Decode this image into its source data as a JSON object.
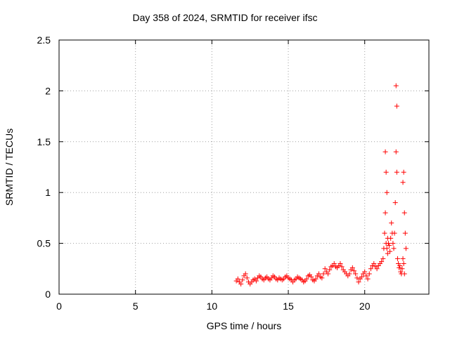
{
  "chart_data": {
    "type": "scatter",
    "title": "Day 358 of 2024, SRMTID for receiver ifsc",
    "xlabel": "GPS time / hours",
    "ylabel": "SRMTID / TECUs",
    "xlim": [
      0,
      24.2
    ],
    "ylim": [
      0,
      2.5
    ],
    "xticks": [
      "0",
      "5",
      "10",
      "15",
      "20"
    ],
    "yticks": [
      "0",
      "0.5",
      "1",
      "1.5",
      "2",
      "2.5"
    ],
    "grid": true,
    "marker": "plus",
    "color": "#ff0000",
    "series": [
      {
        "x": [
          11.6,
          11.7,
          11.8,
          11.9,
          12.0,
          12.1,
          12.2,
          12.3,
          12.4,
          12.5,
          12.6,
          12.7,
          12.8,
          12.9,
          13.0,
          13.1,
          13.2,
          13.3,
          13.4,
          13.5,
          13.6,
          13.7,
          13.8,
          13.9,
          14.0,
          14.1,
          14.2,
          14.3,
          14.4,
          14.5,
          14.6,
          14.7,
          14.8,
          14.9,
          15.0,
          15.1,
          15.2,
          15.3,
          15.4,
          15.5,
          15.6,
          15.7,
          15.8,
          15.9,
          16.0,
          16.1,
          16.2,
          16.3,
          16.4,
          16.5,
          16.6,
          16.7,
          16.8,
          16.9,
          17.0,
          17.1,
          17.2,
          17.3,
          17.4,
          17.5,
          17.6,
          17.7,
          17.8,
          17.9,
          18.0,
          18.1,
          18.2,
          18.3,
          18.4,
          18.5,
          18.6,
          18.7,
          18.8,
          18.9,
          19.0,
          19.1,
          19.2,
          19.3,
          19.4,
          19.5,
          19.6,
          19.7,
          19.8,
          19.9,
          20.0,
          20.1,
          20.2,
          20.3,
          20.4,
          20.5,
          20.6,
          20.7,
          20.8,
          20.9,
          21.0,
          21.1,
          21.2,
          21.25,
          21.3,
          21.35,
          21.35,
          21.4,
          21.4,
          21.45,
          21.45,
          21.5,
          21.5,
          21.55,
          21.6,
          21.65,
          21.7,
          21.75,
          21.8,
          21.85,
          21.9,
          21.95,
          22.0,
          22.05,
          22.05,
          22.1,
          22.1,
          22.15,
          22.2,
          22.25,
          22.3,
          22.35,
          22.4,
          22.45,
          22.5,
          22.5,
          22.55,
          22.55,
          22.6,
          22.6,
          22.65,
          22.7
        ],
        "y": [
          0.13,
          0.15,
          0.12,
          0.1,
          0.14,
          0.18,
          0.2,
          0.16,
          0.12,
          0.1,
          0.12,
          0.14,
          0.15,
          0.13,
          0.16,
          0.18,
          0.17,
          0.15,
          0.14,
          0.16,
          0.17,
          0.15,
          0.14,
          0.16,
          0.18,
          0.17,
          0.15,
          0.14,
          0.16,
          0.15,
          0.14,
          0.15,
          0.17,
          0.18,
          0.16,
          0.15,
          0.14,
          0.12,
          0.14,
          0.15,
          0.17,
          0.16,
          0.15,
          0.14,
          0.12,
          0.13,
          0.15,
          0.18,
          0.19,
          0.17,
          0.14,
          0.13,
          0.15,
          0.18,
          0.2,
          0.17,
          0.16,
          0.2,
          0.25,
          0.22,
          0.2,
          0.24,
          0.27,
          0.28,
          0.3,
          0.27,
          0.26,
          0.28,
          0.3,
          0.27,
          0.24,
          0.22,
          0.2,
          0.18,
          0.2,
          0.24,
          0.26,
          0.23,
          0.2,
          0.16,
          0.12,
          0.15,
          0.17,
          0.2,
          0.22,
          0.18,
          0.15,
          0.2,
          0.25,
          0.28,
          0.3,
          0.27,
          0.25,
          0.28,
          0.3,
          0.32,
          0.35,
          0.45,
          0.6,
          1.4,
          0.8,
          1.2,
          0.5,
          1.0,
          0.45,
          0.55,
          0.4,
          0.5,
          0.48,
          0.42,
          0.55,
          0.7,
          0.6,
          0.5,
          0.45,
          0.6,
          0.9,
          2.05,
          1.4,
          1.85,
          1.2,
          0.35,
          0.3,
          0.26,
          0.28,
          0.22,
          0.2,
          0.25,
          1.1,
          0.35,
          1.2,
          0.3,
          0.8,
          0.2,
          0.6,
          0.45
        ]
      }
    ]
  }
}
